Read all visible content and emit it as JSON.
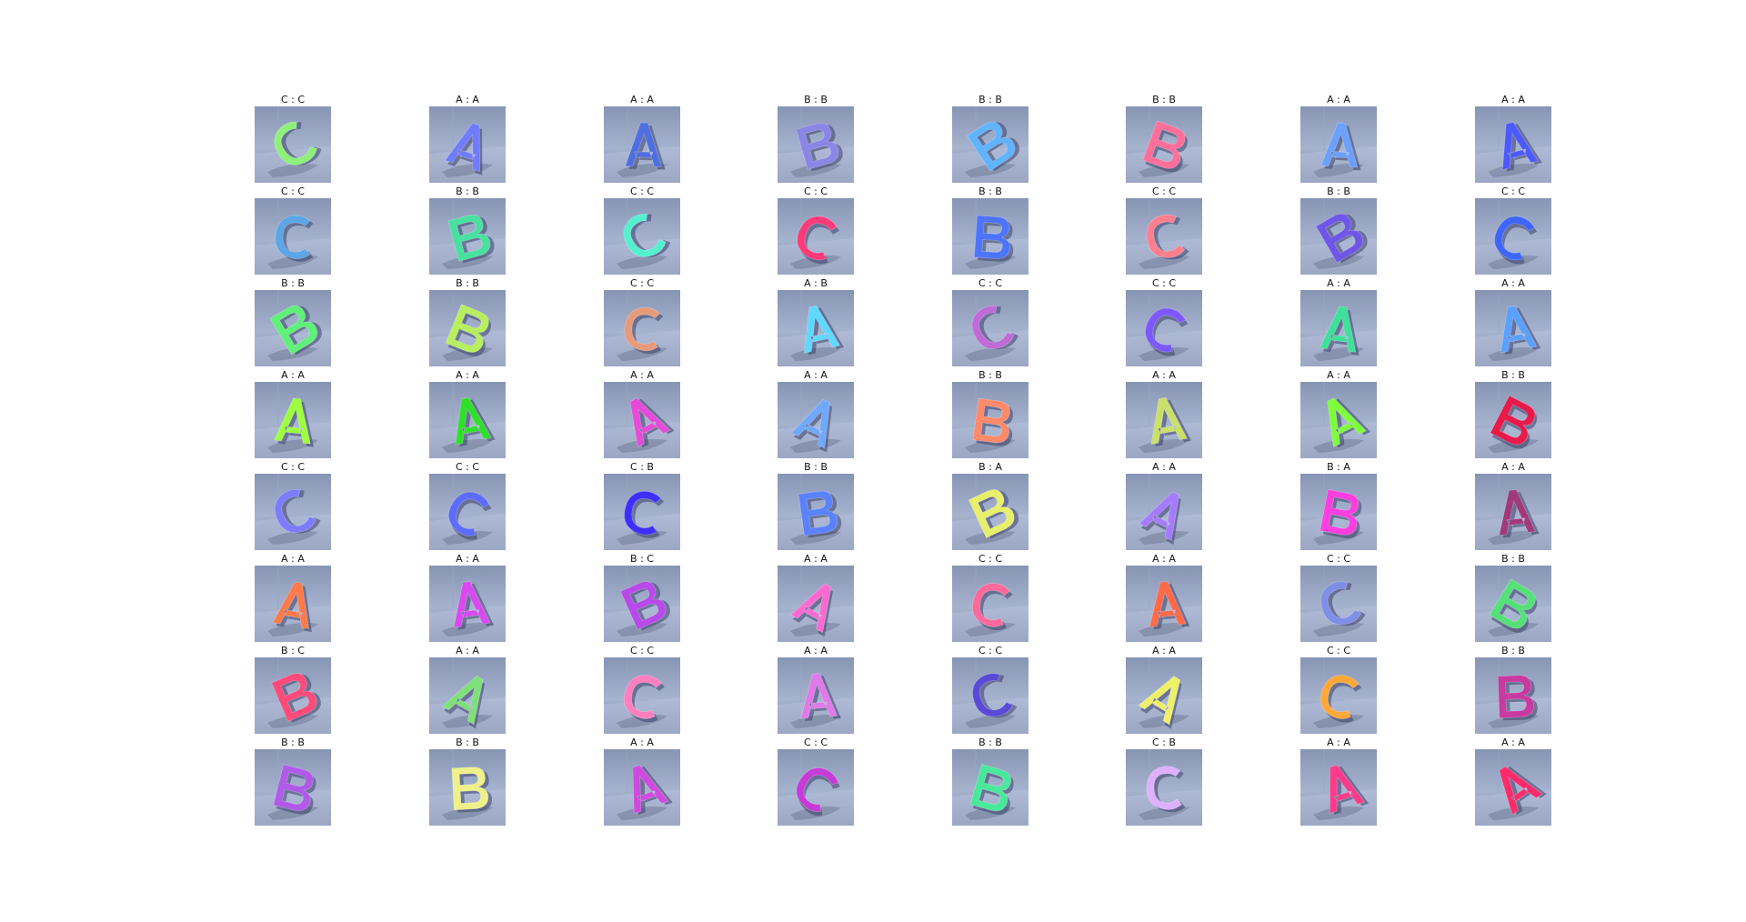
{
  "figure": {
    "rows": [
      [
        "C : C",
        "A : A",
        "A : A",
        "B : B",
        "B : B",
        "B : B",
        "A : A",
        "A : A"
      ],
      [
        "C : C",
        "B : B",
        "C : C",
        "C : C",
        "B : B",
        "C : C",
        "B : B",
        "C : C"
      ],
      [
        "B : B",
        "B : B",
        "C : C",
        "A : B",
        "C : C",
        "C : C",
        "A : A",
        "A : A"
      ],
      [
        "A : A",
        "A : A",
        "A : A",
        "A : A",
        "B : B",
        "A : A",
        "A : A",
        "B : B"
      ],
      [
        "C : C",
        "C : C",
        "C : B",
        "B : B",
        "B : A",
        "A : A",
        "B : A",
        "A : A"
      ],
      [
        "A : A",
        "A : A",
        "B : C",
        "A : A",
        "C : C",
        "A : A",
        "C : C",
        "B : B"
      ],
      [
        "B : C",
        "A : A",
        "C : C",
        "A : A",
        "C : C",
        "A : A",
        "C : C",
        "B : B"
      ],
      [
        "B : B",
        "B : B",
        "A : A",
        "C : C",
        "B : B",
        "C : B",
        "A : A",
        "A : A"
      ]
    ],
    "tile_colors": [
      [
        "#8ef07a",
        "#6f7cff",
        "#4f6fe0",
        "#8a86e6",
        "#5fb3ff",
        "#ff6f9a",
        "#6aa0ff",
        "#4c59ff"
      ],
      [
        "#5aa6e6",
        "#49e0a0",
        "#55f0d0",
        "#ff3a7a",
        "#4d74ff",
        "#ff7f8f",
        "#6f56e8",
        "#3e66ff"
      ],
      [
        "#5ff07a",
        "#b7ef5e",
        "#e89a7a",
        "#5fd8ff",
        "#c06bd8",
        "#7d58ff",
        "#3fe09a",
        "#5aa0ff"
      ],
      [
        "#9dff3f",
        "#2fe02a",
        "#e74ad8",
        "#6fa8ff",
        "#ff8a6a",
        "#c9e06a",
        "#7cff3a",
        "#e81a4a"
      ],
      [
        "#7b7cff",
        "#5b6cff",
        "#3d2fff",
        "#5a82ff",
        "#e8ef6a",
        "#a67bff",
        "#ff3de0",
        "#a03a7a"
      ],
      [
        "#ff7a4a",
        "#d84af0",
        "#b74ae8",
        "#ff6ad0",
        "#ff6a9a",
        "#ff6a4a",
        "#7f8fe8",
        "#55e07a"
      ],
      [
        "#ff4a7a",
        "#7fe07a",
        "#ff7fc0",
        "#e07ae8",
        "#5a4ad8",
        "#eef06a",
        "#ffa83a",
        "#c83aa0"
      ],
      [
        "#b05ae8",
        "#f0f08a",
        "#d04ae0",
        "#c83ad8",
        "#4ae89a",
        "#e0b0ff",
        "#ff3a8a",
        "#ff2a6a"
      ]
    ]
  }
}
